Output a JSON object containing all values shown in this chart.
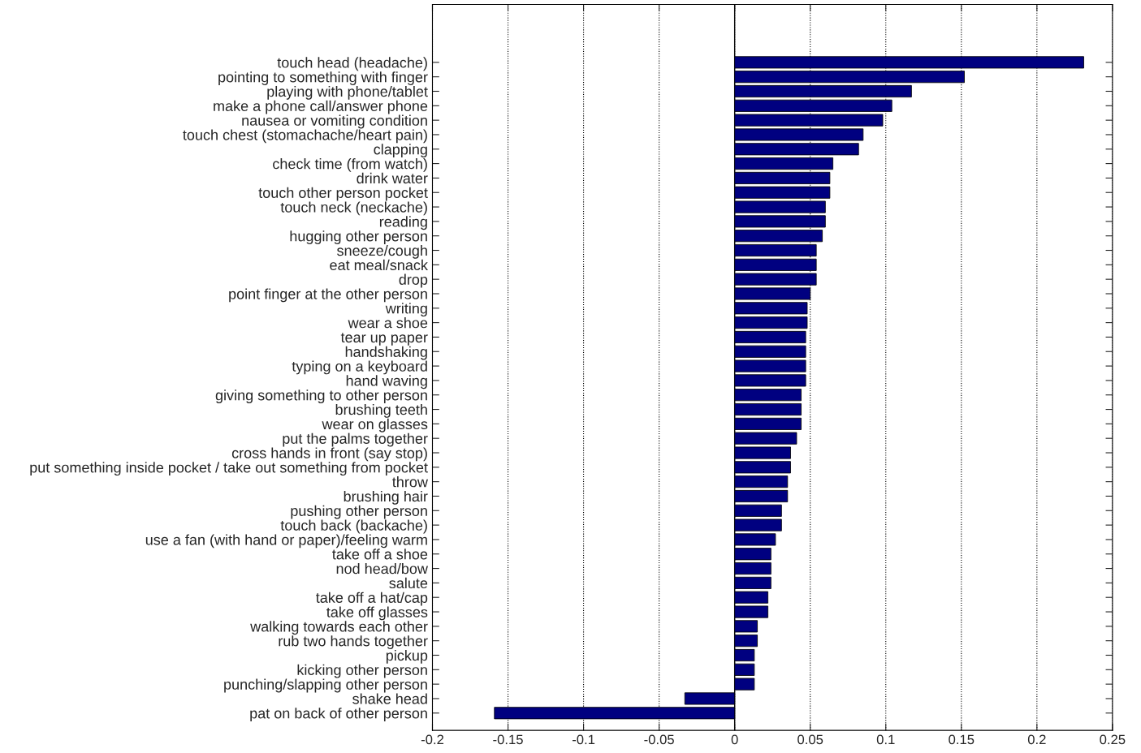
{
  "chart_data": {
    "type": "bar",
    "orientation": "horizontal",
    "categories": [
      "touch head (headache)",
      "pointing to something with finger",
      "playing with phone/tablet",
      "make a phone call/answer phone",
      "nausea or vomiting condition",
      "touch chest (stomachache/heart pain)",
      "clapping",
      "check time (from watch)",
      "drink water",
      "touch other person pocket",
      "touch neck (neckache)",
      "reading",
      "hugging other person",
      "sneeze/cough",
      "eat meal/snack",
      "drop",
      "point finger at the other person",
      "writing",
      "wear a shoe",
      "tear up paper",
      "handshaking",
      "typing on a keyboard",
      "hand waving",
      "giving something to other person",
      "brushing teeth",
      "wear on glasses",
      "put the palms together",
      "cross hands in front (say stop)",
      "put something inside pocket / take out something from pocket",
      "throw",
      "brushing hair",
      "pushing other person",
      "touch back (backache)",
      "use a fan (with hand or paper)/feeling warm",
      "take off a shoe",
      "nod head/bow",
      "salute",
      "take off a hat/cap",
      "take off glasses",
      "walking towards each other",
      "rub two hands together",
      "pickup",
      "kicking other person",
      "punching/slapping other person",
      "shake head",
      "pat on back of other person"
    ],
    "values": [
      0.231,
      0.152,
      0.117,
      0.104,
      0.098,
      0.085,
      0.082,
      0.065,
      0.063,
      0.063,
      0.06,
      0.06,
      0.058,
      0.054,
      0.054,
      0.054,
      0.05,
      0.048,
      0.048,
      0.047,
      0.047,
      0.047,
      0.047,
      0.044,
      0.044,
      0.044,
      0.041,
      0.037,
      0.037,
      0.035,
      0.035,
      0.031,
      0.031,
      0.027,
      0.024,
      0.024,
      0.024,
      0.022,
      0.022,
      0.015,
      0.015,
      0.013,
      0.013,
      0.013,
      -0.033,
      -0.159
    ],
    "color": "#000080",
    "xlim": [
      -0.2,
      0.25
    ],
    "xticks": [
      -0.2,
      -0.15,
      -0.1,
      -0.05,
      0,
      0.05,
      0.1,
      0.15,
      0.2,
      0.25
    ],
    "grid": "x",
    "ref_lines": [
      {
        "axis": "x",
        "value": 0,
        "color": "#000000",
        "line_style": "solid"
      }
    ]
  }
}
